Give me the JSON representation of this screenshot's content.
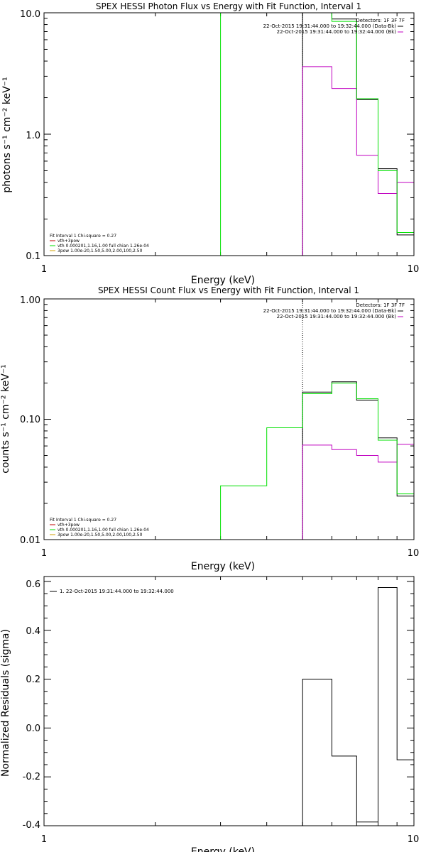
{
  "chart_data": [
    {
      "type": "line",
      "title": "SPEX HESSI Photon Flux vs Energy with Fit Function, Interval 1",
      "xlabel": "Energy (keV)",
      "ylabel": "photons s⁻¹ cm⁻² keV⁻¹",
      "xscale": "log",
      "yscale": "log",
      "xlim": [
        1,
        10
      ],
      "ylim": [
        0.1,
        10
      ],
      "xticks": [
        "1",
        "10"
      ],
      "yticks": [
        "0.1",
        "1.0",
        "10.0"
      ],
      "annotations": [
        "Detectors: 1F 3F 7F",
        "22-Oct-2015 19:31:44.000 to 19:32:44.000 (Data-Bk)",
        "22-Oct-2015 19:31:44.000 to 19:32:44.000 (Bk)"
      ],
      "legend": [
        "Fit Interval 1   Chi-square = 0.27",
        "vth+3pow",
        "vth 0.000201,1.16,1.00  full chian 1.26e-04",
        "3pow 1.00e-20,1.50,5.00,2.00,100,2.50"
      ],
      "legend_position": "bottom-left",
      "series": [
        {
          "name": "22-Oct-2015 19:31:44.000 to 19:32:44.000 (Data-Bk)",
          "color": "#000000",
          "edges": [
            5,
            6,
            7,
            8,
            9,
            10
          ],
          "values": [
            10.0,
            8.9,
            1.93,
            0.52,
            0.148
          ]
        },
        {
          "name": "22-Oct-2015 19:31:44.000 to 19:32:44.000 (Bk)",
          "color": "#c000c0",
          "edges": [
            5,
            6,
            7,
            8,
            9,
            10
          ],
          "values": [
            3.6,
            2.38,
            0.67,
            0.325,
            0.4
          ]
        },
        {
          "name": "vth+3pow",
          "color": "#00e000",
          "edges": [
            3,
            4,
            5,
            6,
            7,
            8,
            9,
            10
          ],
          "values": [
            10.0,
            10.0,
            10.0,
            8.5,
            1.96,
            0.5,
            0.155
          ]
        }
      ]
    },
    {
      "type": "line",
      "title": "SPEX HESSI Count Flux vs Energy with Fit Function, Interval 1",
      "xlabel": "Energy (keV)",
      "ylabel": "counts s⁻¹ cm⁻² keV⁻¹",
      "xscale": "log",
      "yscale": "log",
      "xlim": [
        1,
        10
      ],
      "ylim": [
        0.01,
        1.0
      ],
      "xticks": [
        "1",
        "10"
      ],
      "yticks": [
        "0.01",
        "0.10",
        "1.00"
      ],
      "annotations": [
        "Detectors: 1F 3F 7F",
        "22-Oct-2015 19:31:44.000 to 19:32:44.000 (Data-Bk)",
        "22-Oct-2015 19:31:44.000 to 19:32:44.000 (Bk)"
      ],
      "legend": [
        "Fit Interval 1   Chi-square = 0.27",
        "vth+3pow",
        "vth 0.000201,1.16,1.00  full chian 1.26e-04",
        "3pow 1.00e-20,1.50,5.00,2.00,100,2.50"
      ],
      "legend_position": "bottom-left",
      "series": [
        {
          "name": "22-Oct-2015 19:31:44.000 to 19:32:44.000 (Data-Bk)",
          "color": "#000000",
          "edges": [
            5,
            6,
            7,
            8,
            9,
            10
          ],
          "values": [
            0.168,
            0.205,
            0.144,
            0.07,
            0.023
          ]
        },
        {
          "name": "22-Oct-2015 19:31:44.000 to 19:32:44.000 (Bk)",
          "color": "#c000c0",
          "edges": [
            5,
            6,
            7,
            8,
            9,
            10
          ],
          "values": [
            0.061,
            0.056,
            0.05,
            0.044,
            0.062
          ]
        },
        {
          "name": "vth+3pow",
          "color": "#00e000",
          "edges": [
            3,
            3.5,
            4,
            5,
            6,
            7,
            8,
            9,
            10
          ],
          "values": [
            0.028,
            0.028,
            0.085,
            0.163,
            0.2,
            0.148,
            0.067,
            0.024
          ]
        }
      ]
    },
    {
      "type": "line",
      "title": "",
      "xlabel": "Energy (keV)",
      "ylabel": "Normalized Residuals (sigma)",
      "xscale": "log",
      "yscale": "linear",
      "xlim": [
        1,
        10
      ],
      "ylim": [
        -0.4,
        0.62
      ],
      "xticks": [
        "1",
        "10"
      ],
      "yticks": [
        "-0.4",
        "-0.2",
        "0.0",
        "0.2",
        "0.4",
        "0.6"
      ],
      "legend": [
        "1. 22-Oct-2015 19:31:44.000 to 19:32:44.000"
      ],
      "legend_position": "top-left",
      "series": [
        {
          "name": "1. 22-Oct-2015 19:31:44.000 to 19:32:44.000",
          "color": "#000000",
          "edges": [
            5,
            6,
            7,
            8,
            9,
            10
          ],
          "values": [
            0.2,
            -0.115,
            -0.385,
            0.575,
            -0.13
          ]
        }
      ]
    }
  ]
}
